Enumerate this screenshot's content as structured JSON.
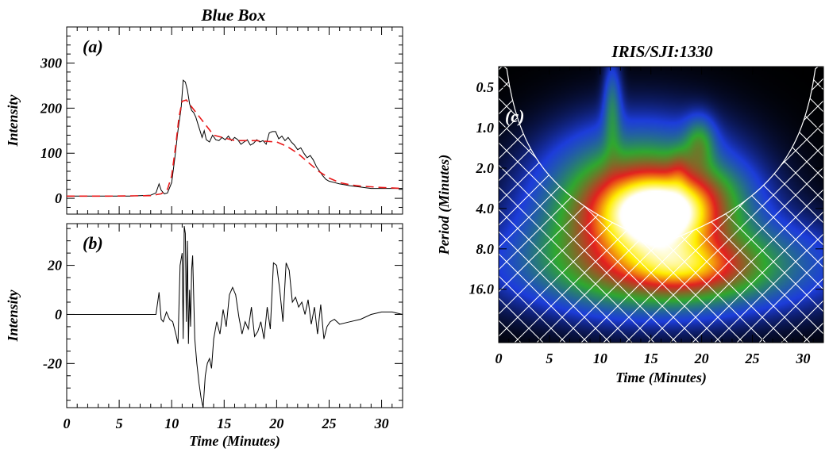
{
  "left_title": "Blue Box",
  "right_title": "IRIS/SJI:1330",
  "chart_data": [
    {
      "type": "line",
      "panel_label": "(a)",
      "ylabel": "Intensity",
      "xlim": [
        0,
        32
      ],
      "ylim": [
        -35,
        380
      ],
      "yticks": [
        0,
        100,
        200,
        300
      ],
      "series": [
        {
          "color": "#000000",
          "x": [
            0,
            2,
            4,
            6,
            7,
            8,
            8.5,
            8.8,
            9.0,
            9.3,
            9.6,
            10.0,
            10.3,
            10.6,
            10.9,
            11.1,
            11.3,
            11.5,
            11.7,
            11.9,
            12.1,
            12.3,
            12.5,
            12.7,
            12.9,
            13.1,
            13.3,
            13.6,
            13.9,
            14.2,
            14.5,
            14.8,
            15.1,
            15.4,
            15.7,
            16.0,
            16.3,
            16.6,
            16.9,
            17.2,
            17.5,
            17.8,
            18.1,
            18.4,
            18.7,
            19.0,
            19.3,
            19.6,
            19.9,
            20.2,
            20.5,
            20.8,
            21.1,
            21.4,
            21.7,
            22.0,
            22.3,
            22.6,
            22.9,
            23.2,
            23.5,
            23.8,
            24.1,
            24.4,
            24.7,
            25.0,
            25.5,
            26.0,
            26.5,
            27.0,
            28,
            29,
            30,
            31,
            32
          ],
          "y": [
            5,
            5,
            5,
            5,
            6,
            7,
            12,
            32,
            18,
            10,
            12,
            35,
            90,
            150,
            200,
            262,
            258,
            240,
            210,
            195,
            190,
            180,
            165,
            150,
            135,
            150,
            130,
            125,
            140,
            130,
            128,
            135,
            130,
            138,
            128,
            135,
            130,
            120,
            125,
            130,
            118,
            122,
            130,
            125,
            128,
            120,
            145,
            148,
            148,
            132,
            138,
            128,
            135,
            125,
            118,
            108,
            112,
            100,
            90,
            95,
            85,
            70,
            60,
            50,
            42,
            38,
            35,
            32,
            30,
            28,
            25,
            22,
            22,
            22,
            22
          ]
        },
        {
          "color": "#e8191a",
          "dash": "10,6",
          "x": [
            0,
            4,
            8,
            9.0,
            9.6,
            10.0,
            10.4,
            10.7,
            11.0,
            11.4,
            12,
            13,
            14,
            16,
            18,
            20,
            21,
            22,
            23,
            24,
            25,
            26,
            27,
            28,
            30,
            32
          ],
          "y": [
            5,
            5,
            6,
            10,
            20,
            50,
            120,
            180,
            215,
            218,
            200,
            170,
            140,
            128,
            128,
            125,
            115,
            100,
            80,
            60,
            45,
            35,
            30,
            27,
            24,
            22
          ]
        }
      ]
    },
    {
      "type": "line",
      "panel_label": "(b)",
      "xlabel": "Time (Minutes)",
      "ylabel": "Intensity",
      "xlim": [
        0,
        32
      ],
      "xticks": [
        0,
        5,
        10,
        15,
        20,
        25,
        30
      ],
      "ylim": [
        -38,
        37
      ],
      "yticks": [
        -20,
        0,
        20
      ],
      "series": [
        {
          "color": "#000000",
          "x": [
            0,
            2,
            4,
            6,
            8.5,
            8.8,
            9.0,
            9.2,
            9.5,
            9.8,
            10.1,
            10.4,
            10.6,
            10.8,
            11.0,
            11.1,
            11.2,
            11.3,
            11.4,
            11.5,
            11.6,
            11.7,
            11.8,
            11.9,
            12.0,
            12.2,
            12.4,
            12.6,
            12.8,
            13.0,
            13.2,
            13.4,
            13.6,
            13.8,
            14.0,
            14.3,
            14.6,
            14.9,
            15.2,
            15.5,
            15.8,
            16.1,
            16.4,
            16.7,
            17.0,
            17.3,
            17.6,
            17.9,
            18.2,
            18.5,
            18.8,
            19.1,
            19.4,
            19.7,
            20.0,
            20.3,
            20.6,
            20.9,
            21.2,
            21.5,
            21.8,
            22.1,
            22.4,
            22.7,
            23.0,
            23.3,
            23.6,
            23.9,
            24.2,
            24.5,
            24.8,
            25.1,
            25.5,
            26,
            27,
            28,
            29,
            30,
            31,
            32
          ],
          "y": [
            0,
            0,
            0,
            0,
            0,
            9,
            -2,
            -3,
            1,
            -2,
            -3,
            -8,
            -12,
            20,
            25,
            -10,
            36,
            33,
            -3,
            30,
            -12,
            10,
            -5,
            18,
            24,
            -10,
            -20,
            -28,
            -34,
            -38,
            -25,
            -20,
            -18,
            -22,
            -10,
            -3,
            -8,
            2,
            -5,
            8,
            11,
            8,
            -1,
            -8,
            -3,
            -6,
            3,
            -9,
            -7,
            -3,
            -10,
            3,
            -6,
            21,
            20,
            10,
            -3,
            21,
            18,
            5,
            7,
            3,
            5,
            0,
            6,
            -4,
            3,
            -8,
            4,
            -10,
            -5,
            -3,
            -2,
            -4,
            -3,
            -2,
            0,
            1,
            1,
            0
          ]
        }
      ]
    },
    {
      "type": "heatmap",
      "panel_label": "(c)",
      "xlabel": "Time (Minutes)",
      "ylabel": "Period (Minutes)",
      "xlim": [
        0,
        32
      ],
      "xticks": [
        0,
        5,
        10,
        15,
        20,
        25,
        30
      ],
      "ylim": [
        0.35,
        40
      ],
      "y_scale": "log",
      "y_reversed": true,
      "yticks": [
        0.5,
        1.0,
        2.0,
        4.0,
        8.0,
        16.0
      ],
      "ytick_labels": [
        "0.5",
        "1.0",
        "2.0",
        "4.0",
        "8.0",
        "16.0"
      ],
      "colormap": [
        "#000000",
        "#1d3ddb",
        "#2fa82f",
        "#e32020",
        "#ffee00",
        "#ffffff"
      ],
      "hatch_color": "#ffffff",
      "features": [
        {
          "x": 14,
          "period": 3.8,
          "sx": 6.4,
          "sp": 0.85,
          "amp": 0.52
        },
        {
          "x": 15,
          "period": 4.2,
          "sx": 3.8,
          "sp": 0.45,
          "amp": 0.55
        },
        {
          "x": 18,
          "period": 4.2,
          "sx": 3.0,
          "sp": 0.32,
          "amp": 0.18
        },
        {
          "x": 17,
          "period": 11,
          "sx": 10.5,
          "sp": 0.55,
          "amp": 0.36
        },
        {
          "x": 18.5,
          "period": 11,
          "sx": 4.0,
          "sp": 0.3,
          "amp": 0.3
        },
        {
          "x": 11.2,
          "period": 0.7,
          "sx": 0.6,
          "sp": 0.55,
          "amp": 0.2
        },
        {
          "x": 19.8,
          "period": 1.3,
          "sx": 1.0,
          "sp": 0.3,
          "amp": 0.22
        },
        {
          "x": 17.8,
          "period": 2.0,
          "sx": 0.7,
          "sp": 0.25,
          "amp": 0.1
        },
        {
          "x": 20.5,
          "period": 2.8,
          "sx": 3.0,
          "sp": 0.3,
          "amp": 0.08
        }
      ]
    }
  ]
}
